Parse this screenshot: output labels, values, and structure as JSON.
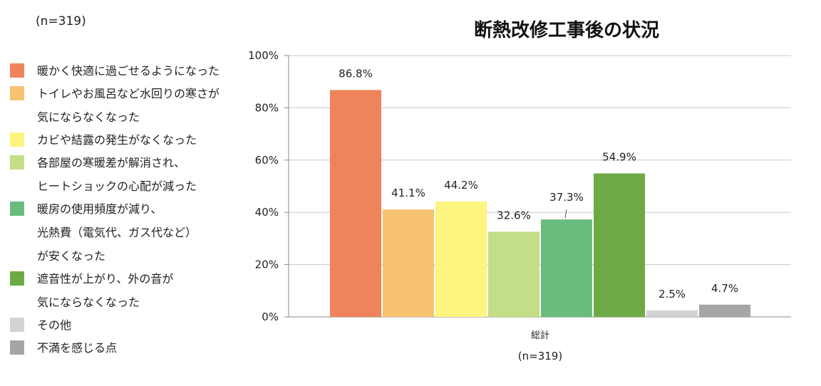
{
  "sample_note": "(n=319)",
  "chart_data": {
    "type": "bar",
    "title": "断熱改修工事後の状況",
    "categories": [
      "総計"
    ],
    "category_note": "(n=319)",
    "ylim": [
      0,
      100
    ],
    "y_ticks": [
      "0%",
      "20%",
      "40%",
      "60%",
      "80%",
      "100%"
    ],
    "grid": true,
    "legend_position": "left",
    "series": [
      {
        "name": "暖かく快適に過ごせるようになった",
        "values": [
          86.8
        ],
        "label": "86.8%",
        "color": "#ef845c"
      },
      {
        "name": "トイレやお風呂など水回りの寒さが\n気にならなくなった",
        "values": [
          41.1
        ],
        "label": "41.1%",
        "color": "#f9c270"
      },
      {
        "name": "カビや結露の発生がなくなった",
        "values": [
          44.2
        ],
        "label": "44.2%",
        "color": "#fef480"
      },
      {
        "name": "各部屋の寒暖差が解消され、\nヒートショックの心配が減った",
        "values": [
          32.6
        ],
        "label": "32.6%",
        "color": "#c4de87"
      },
      {
        "name": "暖房の使用頻度が減り、\n光熱費（電気代、ガス代など）\nが安くなった",
        "values": [
          37.3
        ],
        "label": "37.3%",
        "color": "#69bc7e"
      },
      {
        "name": "遮音性が上がり、外の音が\n気にならなくなった",
        "values": [
          54.9
        ],
        "label": "54.9%",
        "color": "#6daa45"
      },
      {
        "name": "その他",
        "values": [
          2.5
        ],
        "label": "2.5%",
        "color": "#d3d3d3"
      },
      {
        "name": "不満を感じる点",
        "values": [
          4.7
        ],
        "label": "4.7%",
        "color": "#a5a5a5"
      }
    ]
  }
}
